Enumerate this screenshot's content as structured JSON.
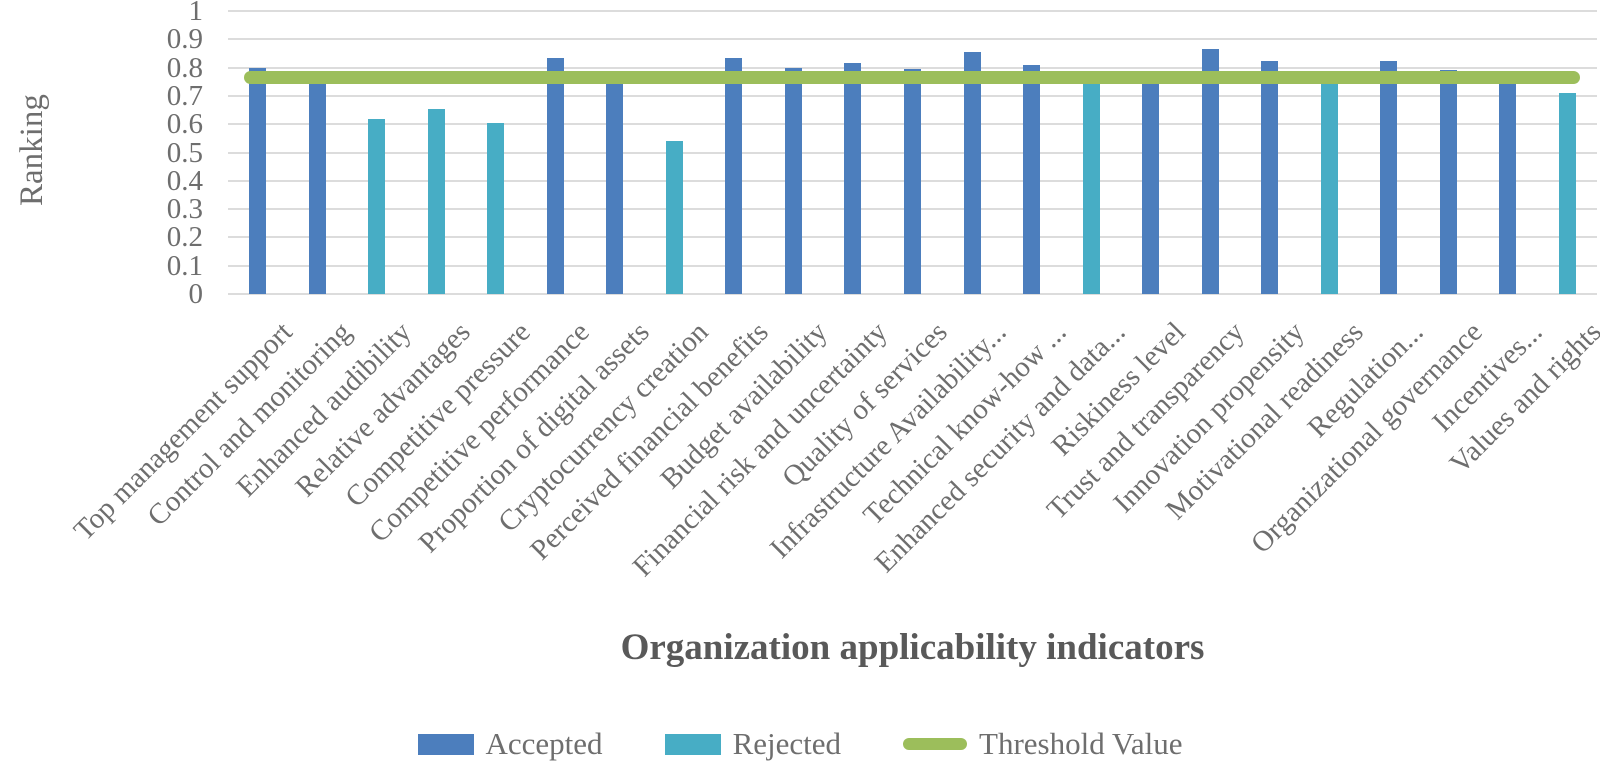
{
  "chart_data": {
    "type": "bar",
    "title": "",
    "xlabel": "Organization applicability indicators",
    "ylabel": "Ranking",
    "ylim": [
      0,
      1
    ],
    "ytick_labels": [
      "0",
      "0.1",
      "0.2",
      "0.3",
      "0.4",
      "0.5",
      "0.6",
      "0.7",
      "0.8",
      "0.9",
      "1"
    ],
    "grid": true,
    "legend_position": "bottom",
    "series_colors": {
      "Accepted": "#4C7EBD",
      "Rejected": "#47ADC5"
    },
    "threshold_line": {
      "label": "Threshold Value",
      "value": 0.765,
      "color": "#9CBE5B"
    },
    "bars": [
      {
        "category": "Top management support",
        "value": 0.8,
        "series": "Accepted"
      },
      {
        "category": "Control and monitoring",
        "value": 0.75,
        "series": "Accepted"
      },
      {
        "category": "Enhanced audibility",
        "value": 0.62,
        "series": "Rejected"
      },
      {
        "category": "Relative advantages",
        "value": 0.655,
        "series": "Rejected"
      },
      {
        "category": "Competitive pressure",
        "value": 0.605,
        "series": "Rejected"
      },
      {
        "category": "Competitive performance",
        "value": 0.835,
        "series": "Accepted"
      },
      {
        "category": "Proportion of digital assets",
        "value": 0.75,
        "series": "Accepted"
      },
      {
        "category": "Cryptocurrency creation",
        "value": 0.54,
        "series": "Rejected"
      },
      {
        "category": "Perceived financial benefits",
        "value": 0.835,
        "series": "Accepted"
      },
      {
        "category": "Budget availability",
        "value": 0.8,
        "series": "Accepted"
      },
      {
        "category": "Financial risk and uncertainty",
        "value": 0.815,
        "series": "Accepted"
      },
      {
        "category": "Quality of services",
        "value": 0.795,
        "series": "Accepted"
      },
      {
        "category": "Infrastructure Availability...",
        "value": 0.855,
        "series": "Accepted"
      },
      {
        "category": "Technical know-how ...",
        "value": 0.81,
        "series": "Accepted"
      },
      {
        "category": "Enhanced security and data...",
        "value": 0.75,
        "series": "Rejected"
      },
      {
        "category": "Riskiness level",
        "value": 0.75,
        "series": "Accepted"
      },
      {
        "category": "Trust and transparency",
        "value": 0.865,
        "series": "Accepted"
      },
      {
        "category": "Innovation propensity",
        "value": 0.825,
        "series": "Accepted"
      },
      {
        "category": "Motivational readiness",
        "value": 0.75,
        "series": "Rejected"
      },
      {
        "category": "Regulation...",
        "value": 0.825,
        "series": "Accepted"
      },
      {
        "category": "Organizational governance",
        "value": 0.79,
        "series": "Accepted"
      },
      {
        "category": "Incentives...",
        "value": 0.75,
        "series": "Accepted"
      },
      {
        "category": "Values and rights",
        "value": 0.71,
        "series": "Rejected"
      }
    ]
  },
  "legend": {
    "items": [
      {
        "label": "Accepted",
        "color": "#4C7EBD",
        "marker": "rect"
      },
      {
        "label": "Rejected",
        "color": "#47ADC5",
        "marker": "rect"
      },
      {
        "label": "Threshold Value",
        "color": "#9CBE5B",
        "marker": "line"
      }
    ]
  },
  "colors": {
    "gridline": "#dcdcdc",
    "axis_text": "#6e6e6e",
    "title_text": "#595959",
    "background": "#ffffff"
  }
}
